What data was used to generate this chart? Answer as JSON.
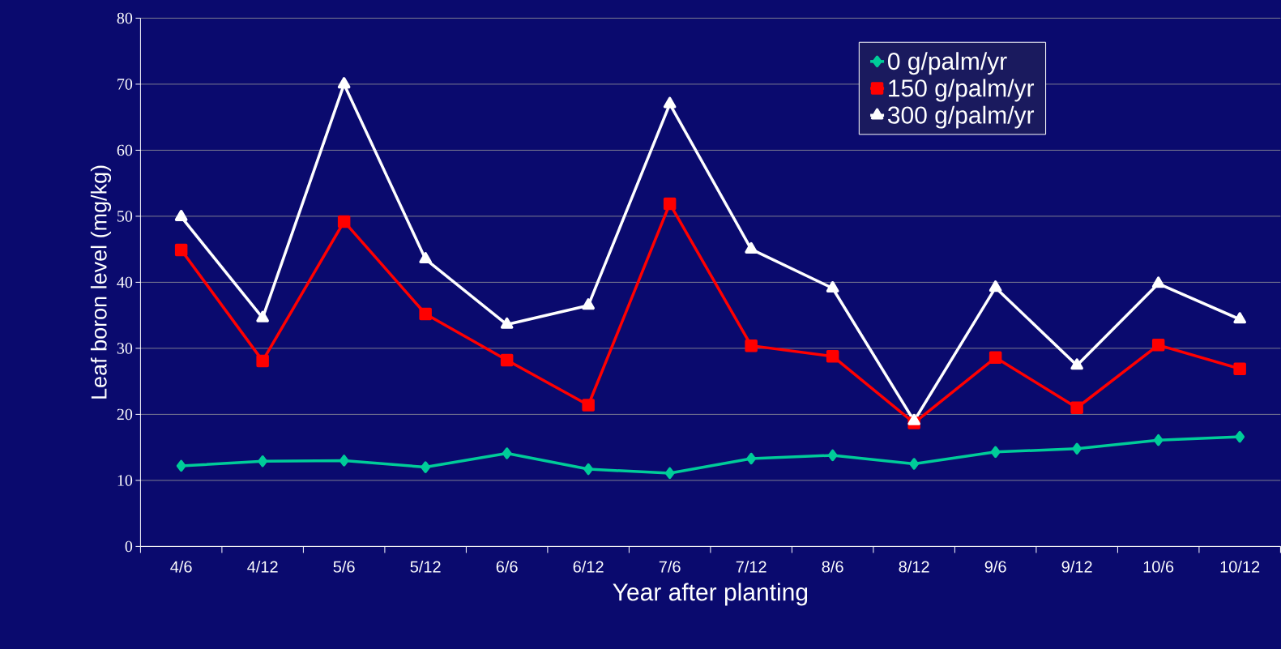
{
  "chart_data": {
    "type": "line",
    "xlabel": "Year after planting",
    "ylabel": "Leaf boron level (mg/kg)",
    "categories": [
      "4/6",
      "4/12",
      "5/6",
      "5/12",
      "6/6",
      "6/12",
      "7/6",
      "7/12",
      "8/6",
      "8/12",
      "9/6",
      "9/12",
      "10/6",
      "10/12"
    ],
    "series": [
      {
        "name": "0 g/palm/yr",
        "color": "#00cc99",
        "marker": "diamond",
        "values": [
          12.2,
          12.9,
          13.0,
          12.0,
          14.1,
          11.7,
          11.1,
          13.3,
          13.8,
          12.5,
          14.3,
          14.8,
          16.1,
          16.6
        ]
      },
      {
        "name": "150 g/palm/yr",
        "color": "#ff0000",
        "marker": "square",
        "values": [
          44.9,
          28.1,
          49.2,
          35.2,
          28.2,
          21.4,
          51.9,
          30.4,
          28.8,
          18.7,
          28.6,
          21.0,
          30.5,
          26.9
        ]
      },
      {
        "name": "300 g/palm/yr",
        "color": "#ffffff",
        "marker": "triangle",
        "values": [
          49.9,
          34.6,
          70.0,
          43.5,
          33.6,
          36.5,
          67.0,
          45.0,
          39.1,
          19.0,
          39.2,
          27.4,
          39.8,
          34.4
        ]
      }
    ],
    "ylim": [
      0,
      80
    ],
    "yticks": [
      0,
      10,
      20,
      30,
      40,
      50,
      60,
      70,
      80
    ],
    "grid": "y",
    "legend": "top right",
    "line_style": "solid"
  }
}
